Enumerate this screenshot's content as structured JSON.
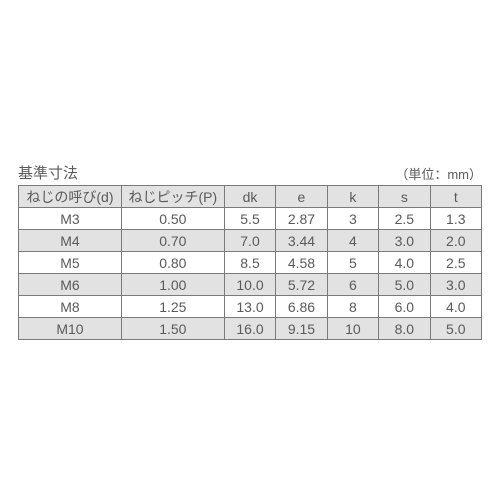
{
  "title": "基準寸法",
  "unit": "（単位：mm）",
  "columns": [
    "ねじの呼び(d)",
    "ねじピッチ(P)",
    "dk",
    "e",
    "k",
    "s",
    "t"
  ],
  "rows": [
    [
      "M3",
      "0.50",
      "5.5",
      "2.87",
      "3",
      "2.5",
      "1.3"
    ],
    [
      "M4",
      "0.70",
      "7.0",
      "3.44",
      "4",
      "3.0",
      "2.0"
    ],
    [
      "M5",
      "0.80",
      "8.5",
      "4.58",
      "5",
      "4.0",
      "2.5"
    ],
    [
      "M6",
      "1.00",
      "10.0",
      "5.72",
      "6",
      "5.0",
      "3.0"
    ],
    [
      "M8",
      "1.25",
      "13.0",
      "6.86",
      "8",
      "6.0",
      "4.0"
    ],
    [
      "M10",
      "1.50",
      "16.0",
      "9.15",
      "10",
      "8.0",
      "5.0"
    ]
  ],
  "column_widths_pct": [
    22,
    22,
    11,
    11,
    11,
    11,
    11
  ],
  "colors": {
    "background": "#ffffff",
    "header_bg": "#e2e2e2",
    "stripe_bg": "#e2e2e2",
    "border": "#7a7a7a",
    "text": "#5a5a5a"
  },
  "font_sizes_pt": {
    "title": 11,
    "unit": 10,
    "cell": 10
  }
}
